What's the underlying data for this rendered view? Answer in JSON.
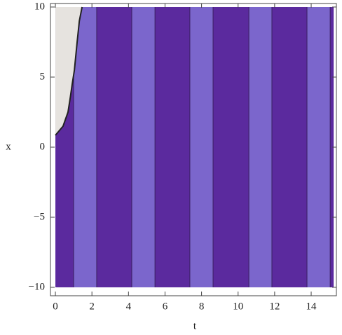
{
  "chart_data": {
    "type": "contour",
    "x_label": "t",
    "y_label": "x",
    "xlim": [
      -0.27,
      15.38
    ],
    "ylim": [
      -10.6,
      10.25
    ],
    "xticks": [
      0,
      2,
      4,
      6,
      8,
      10,
      12,
      14
    ],
    "yticks": [
      {
        "value": -10,
        "label": "−10"
      },
      {
        "value": -5,
        "label": "−5"
      },
      0,
      5,
      10
    ],
    "bands": {
      "edges": [
        0,
        1.0,
        2.26,
        4.18,
        5.45,
        7.36,
        8.63,
        10.59,
        11.85,
        13.77,
        15.04,
        15.23
      ],
      "colors": [
        "#5b2a9e",
        "#7b66cc",
        "#5b2a9e",
        "#7b66cc",
        "#5b2a9e",
        "#7b66cc",
        "#5b2a9e",
        "#7b66cc",
        "#5b2a9e",
        "#7b66cc",
        "#5b2a9e"
      ]
    },
    "boundary": {
      "t": [
        0,
        0.42,
        0.69,
        0.81,
        0.92,
        1.04,
        1.19,
        1.31,
        1.46
      ],
      "x": [
        0.85,
        1.5,
        2.5,
        3.5,
        4.5,
        5.5,
        7.5,
        9,
        10
      ],
      "color": "#e6e3df"
    }
  }
}
